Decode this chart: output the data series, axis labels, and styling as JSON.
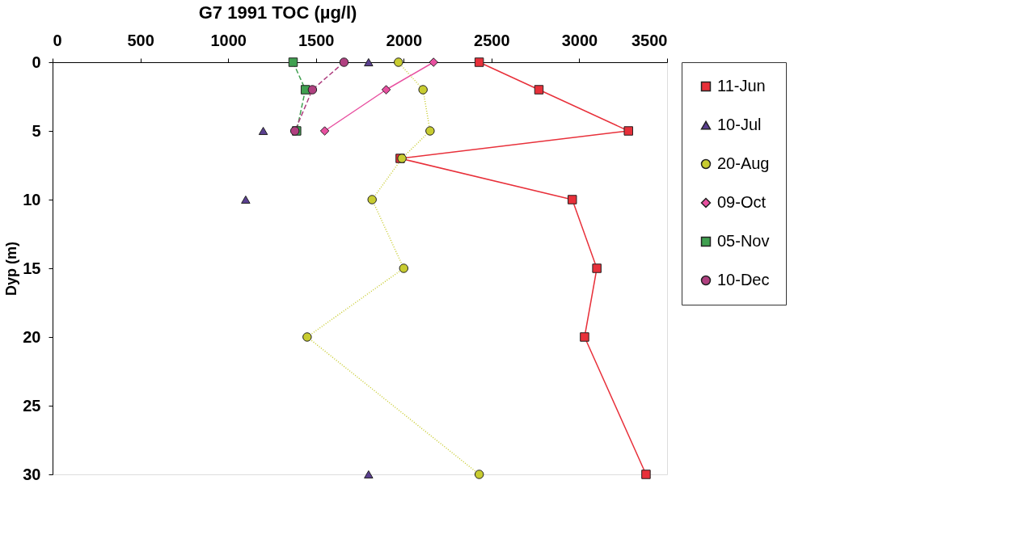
{
  "chart_data": {
    "type": "line",
    "title": "G7 1991 TOC (µg/l)",
    "ylabel": "Dyp (m)",
    "xlim": [
      0,
      3500
    ],
    "xticks": [
      0,
      500,
      1000,
      1500,
      2000,
      2500,
      3000,
      3500
    ],
    "ylim": [
      30,
      0
    ],
    "yticks": [
      0,
      5,
      10,
      15,
      20,
      25,
      30
    ],
    "grid": false,
    "legend": "right",
    "series": [
      {
        "name": "11-Jun",
        "color": "#e8303a",
        "marker": "square",
        "line_style": "solid",
        "x": [
          2430,
          2770,
          3280,
          1980,
          2960,
          3100,
          3030,
          3380
        ],
        "values": [
          0,
          2,
          5,
          7,
          10,
          15,
          20,
          30
        ]
      },
      {
        "name": "10-Jul",
        "type": "scatter",
        "color": "#5a3f8f",
        "marker": "triangle",
        "line_style": "solid",
        "x": [
          1800,
          1200,
          1100,
          1800
        ],
        "values": [
          0,
          5,
          10,
          30
        ]
      },
      {
        "name": "20-Aug",
        "color": "#c8cc30",
        "marker": "circle",
        "line_style": "dotted",
        "x": [
          1970,
          2110,
          2150,
          1990,
          1820,
          2000,
          1450,
          2430
        ],
        "values": [
          0,
          2,
          5,
          7,
          10,
          15,
          20,
          30
        ]
      },
      {
        "name": "09-Oct",
        "color": "#e850a0",
        "marker": "diamond",
        "line_style": "solid",
        "x": [
          2170,
          1900,
          1550
        ],
        "values": [
          0,
          2,
          5
        ]
      },
      {
        "name": "05-Nov",
        "color": "#40a050",
        "marker": "square",
        "line_style": "dashed",
        "x": [
          1370,
          1440,
          1390
        ],
        "values": [
          0,
          2,
          5
        ]
      },
      {
        "name": "10-Dec",
        "color": "#b04080",
        "marker": "circle",
        "line_style": "dashed",
        "x": [
          1660,
          1480,
          1380
        ],
        "values": [
          0,
          2,
          5
        ]
      }
    ]
  }
}
